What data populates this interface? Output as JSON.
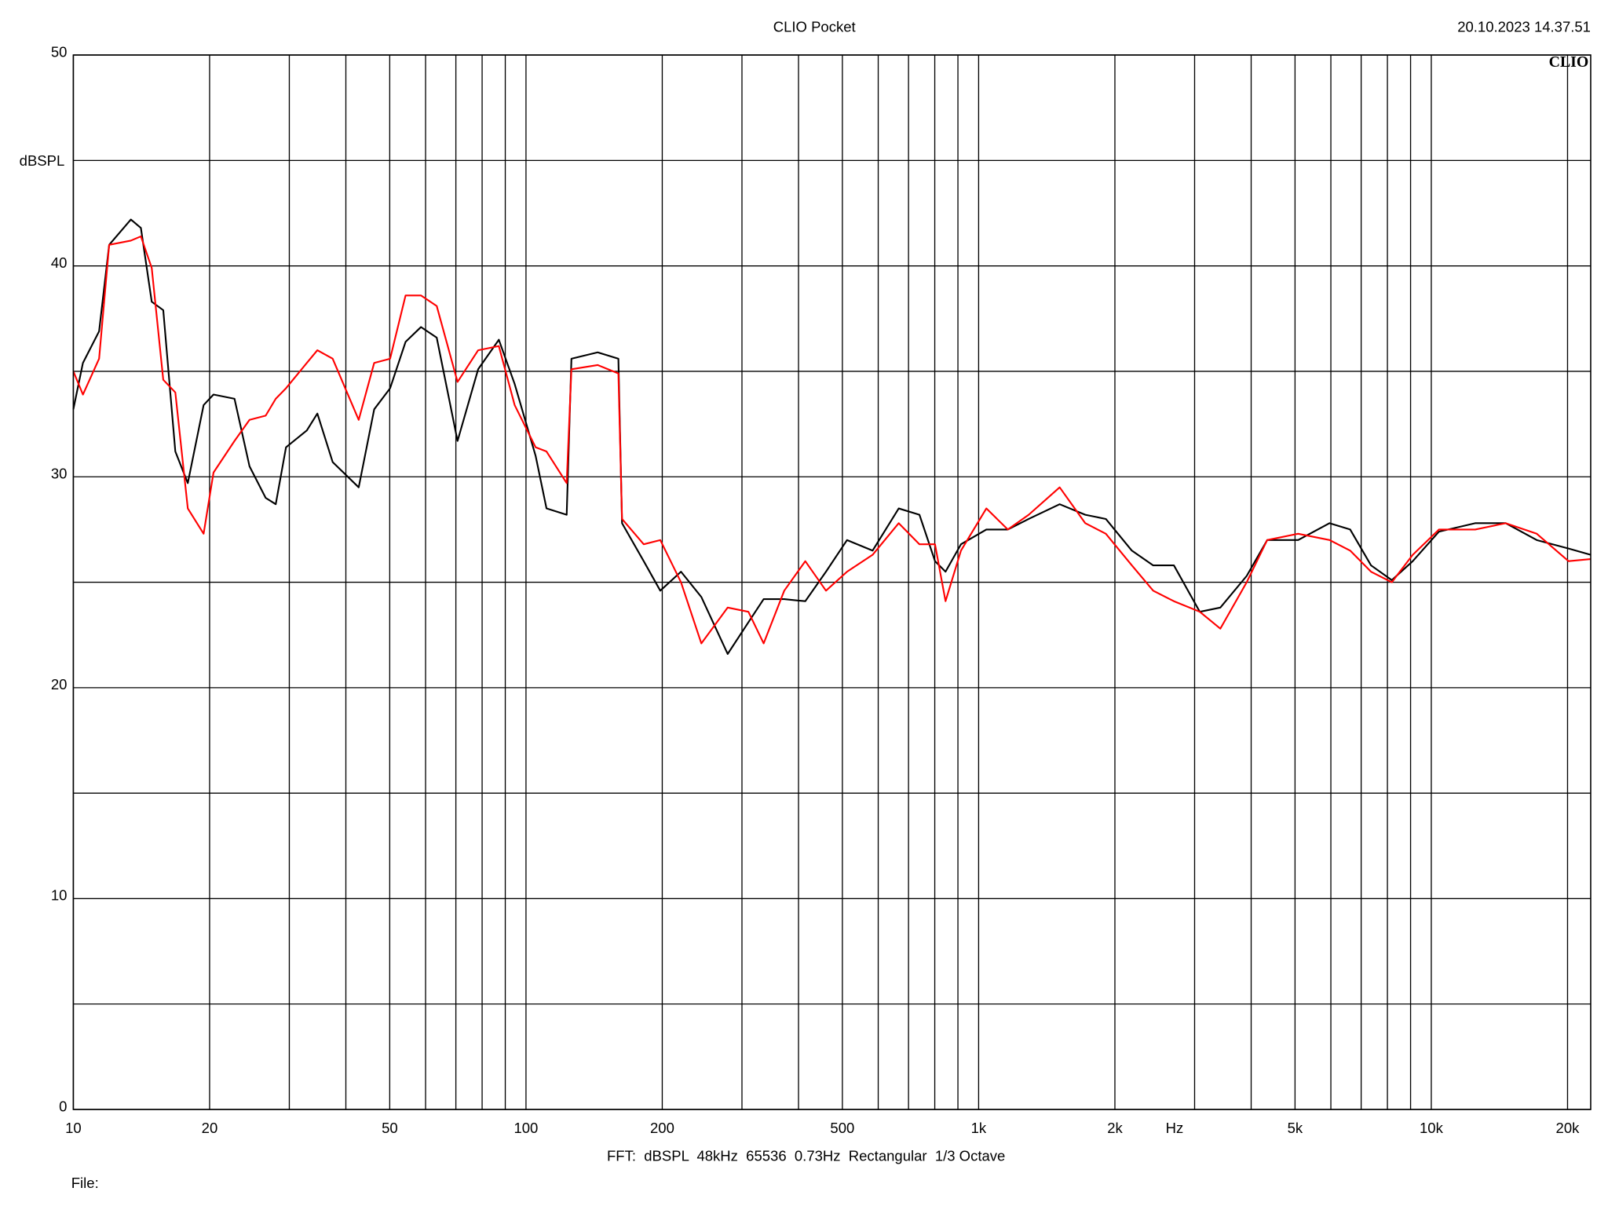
{
  "chart_data": {
    "type": "line",
    "title": "CLIO Pocket",
    "timestamp": "20.10.2023 14.37.51",
    "logo": "CLIO",
    "y_label": "dBSPL",
    "x_label": "Hz",
    "footer": "FFT:  dBSPL  48kHz  65536  0.73Hz  Rectangular  1/3 Octave",
    "file_label": "File:",
    "x_log": true,
    "grid": true,
    "xlim": [
      10,
      22500
    ],
    "ylim": [
      0,
      50
    ],
    "xticks": [
      10,
      20,
      50,
      100,
      200,
      500,
      {
        "value": 1000,
        "label": "1k"
      },
      {
        "value": 2000,
        "label": "2k"
      },
      {
        "value": 5000,
        "label": "5k"
      },
      {
        "value": 10000,
        "label": "10k"
      },
      {
        "value": 20000,
        "label": "20k"
      }
    ],
    "xminor": [
      30,
      40,
      60,
      70,
      80,
      90,
      300,
      400,
      600,
      700,
      800,
      900,
      3000,
      4000,
      6000,
      7000,
      8000,
      9000
    ],
    "yticks": [
      0,
      10,
      20,
      30,
      40,
      50
    ],
    "yminor": [
      5,
      15,
      25,
      35,
      45
    ],
    "x": [
      10,
      10.5,
      11.4,
      12.0,
      13.4,
      14.1,
      14.9,
      15.8,
      16.8,
      17.9,
      19.4,
      20.4,
      22.7,
      24.5,
      26.6,
      28.0,
      29.5,
      32.8,
      34.6,
      37.4,
      42.7,
      46.2,
      50.1,
      54.2,
      58.6,
      63.5,
      70.6,
      78.4,
      87.1,
      94.4,
      105,
      111,
      123,
      126,
      144,
      160,
      163,
      182,
      198,
      220,
      244,
      279,
      310,
      335,
      372,
      414,
      460,
      512,
      583,
      666,
      740,
      801,
      845,
      914,
      1040,
      1160,
      1290,
      1510,
      1720,
      1910,
      2180,
      2430,
      2700,
      3080,
      3420,
      3910,
      4340,
      5080,
      5960,
      6620,
      7360,
      8180,
      9100,
      10400,
      12500,
      14600,
      17100,
      20100,
      22500
    ],
    "series": [
      {
        "color": "#000000",
        "values": [
          33.2,
          35.4,
          36.9,
          41.0,
          42.2,
          41.8,
          38.3,
          37.9,
          31.2,
          29.7,
          33.4,
          33.9,
          33.7,
          30.5,
          29.0,
          28.7,
          31.4,
          32.2,
          33.0,
          30.7,
          29.5,
          33.2,
          34.2,
          36.4,
          37.1,
          36.6,
          31.7,
          35.1,
          36.5,
          34.4,
          31.0,
          28.5,
          28.2,
          35.6,
          35.9,
          35.6,
          27.8,
          26.0,
          24.6,
          25.5,
          24.3,
          21.6,
          23.1,
          24.2,
          24.2,
          24.1,
          25.5,
          27.0,
          26.5,
          28.5,
          28.2,
          26.0,
          25.5,
          26.8,
          27.5,
          27.5,
          28.0,
          28.7,
          28.2,
          28.0,
          26.5,
          25.8,
          25.8,
          23.6,
          23.8,
          25.3,
          27.0,
          27.0,
          27.8,
          27.5,
          25.8,
          25.1,
          26.0,
          27.4,
          27.8,
          27.8,
          27.0,
          26.6,
          26.3
        ]
      },
      {
        "color": "#ff0000",
        "values": [
          35.0,
          33.9,
          35.6,
          41.0,
          41.2,
          41.4,
          39.9,
          34.6,
          34.0,
          28.5,
          27.3,
          30.2,
          31.7,
          32.7,
          32.9,
          33.7,
          34.2,
          35.4,
          36.0,
          35.6,
          32.7,
          35.4,
          35.6,
          38.6,
          38.6,
          38.1,
          34.5,
          36.0,
          36.2,
          33.4,
          31.4,
          31.2,
          29.7,
          35.1,
          35.3,
          34.9,
          28.0,
          26.8,
          27.0,
          25.0,
          22.1,
          23.8,
          23.6,
          22.1,
          24.6,
          26.0,
          24.6,
          25.5,
          26.3,
          27.8,
          26.8,
          26.8,
          24.1,
          26.5,
          28.5,
          27.5,
          28.2,
          29.5,
          27.8,
          27.3,
          25.8,
          24.6,
          24.1,
          23.6,
          22.8,
          25.0,
          27.0,
          27.3,
          27.0,
          26.5,
          25.5,
          25.0,
          26.3,
          27.5,
          27.5,
          27.8,
          27.3,
          26.0,
          26.1
        ]
      }
    ]
  }
}
